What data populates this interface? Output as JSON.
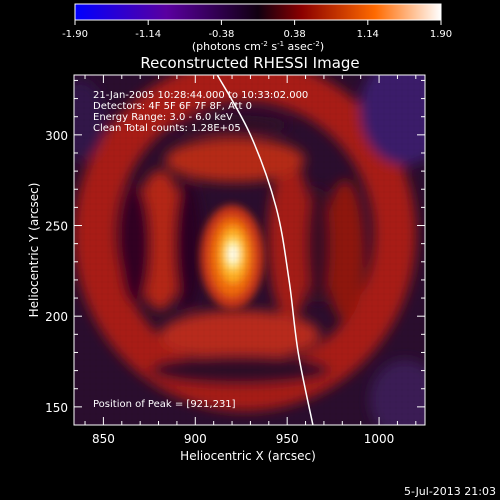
{
  "chart_data": {
    "type": "heatmap",
    "title": "Reconstructed RHESSI Image",
    "colorbar": {
      "ticks": [
        "-1.90",
        "-1.14",
        "-0.38",
        "0.38",
        "1.14",
        "1.90"
      ],
      "unit_label": "(photons cm-2 s-1 asec-2)",
      "range": [
        -1.9,
        1.9
      ],
      "colormap": [
        "#0000ff",
        "#400080",
        "#000000",
        "#8b0000",
        "#ff6a00",
        "#ffffff"
      ]
    },
    "annotations": [
      "21-Jan-2005 10:28:44.000 to 10:33:02.000",
      "Detectors: 4F 5F 6F 7F 8F, Att 0",
      "Energy Range: 3.0 - 6.0 keV",
      "Clean    Total counts: 1.28E+05"
    ],
    "peak_label": "Position of Peak = [921,231]",
    "peak": {
      "x": 921,
      "y": 231,
      "value": 1.9
    },
    "xlabel": "Heliocentric X (arcsec)",
    "ylabel": "Heliocentric Y (arcsec)",
    "xlim": [
      834,
      1025
    ],
    "ylim": [
      140,
      333
    ],
    "xticks": [
      850,
      900,
      950,
      1000
    ],
    "yticks": [
      150,
      200,
      250,
      300
    ],
    "limb_curve": [
      [
        912,
        333
      ],
      [
        930,
        300
      ],
      [
        944,
        260
      ],
      [
        951,
        220
      ],
      [
        956,
        180
      ],
      [
        964,
        140
      ]
    ],
    "date_stamp": "5-Jul-2013 21:03"
  }
}
